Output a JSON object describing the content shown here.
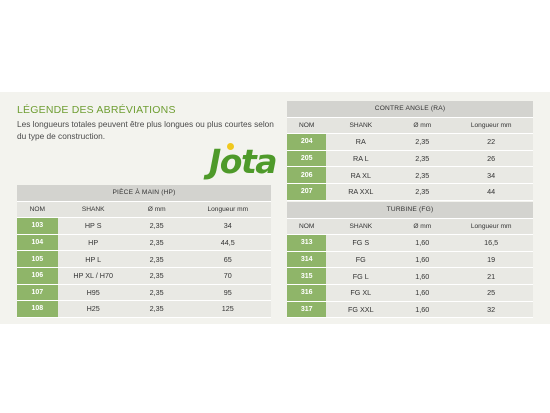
{
  "title": "LÉGENDE DES ABRÉVIATIONS",
  "description": "Les longueurs totales peuvent être plus longues ou plus courtes selon du type de construction.",
  "logo": "Jota",
  "colors": {
    "accent": "#6f9e33",
    "number_cell": "#8fb569",
    "panel": "#f3f3ee"
  },
  "tables": {
    "hp": {
      "caption": "PIÈCE À MAIN (HP)",
      "headers": [
        "NOM",
        "SHANK",
        "Ø mm",
        "Longueur mm"
      ],
      "rows": [
        [
          "103",
          "HP S",
          "2,35",
          "34"
        ],
        [
          "104",
          "HP",
          "2,35",
          "44,5"
        ],
        [
          "105",
          "HP L",
          "2,35",
          "65"
        ],
        [
          "106",
          "HP XL / H70",
          "2,35",
          "70"
        ],
        [
          "107",
          "H95",
          "2,35",
          "95"
        ],
        [
          "108",
          "H25",
          "2,35",
          "125"
        ]
      ]
    },
    "ca": {
      "caption": "CONTRE ANGLE (RA)",
      "headers": [
        "NOM",
        "SHANK",
        "Ø mm",
        "Longueur mm"
      ],
      "rows": [
        [
          "204",
          "RA",
          "2,35",
          "22"
        ],
        [
          "205",
          "RA L",
          "2,35",
          "26"
        ],
        [
          "206",
          "RA XL",
          "2,35",
          "34"
        ],
        [
          "207",
          "RA XXL",
          "2,35",
          "44"
        ]
      ]
    },
    "tb": {
      "caption": "TURBINE (FG)",
      "headers": [
        "NOM",
        "SHANK",
        "Ø mm",
        "Longueur mm"
      ],
      "rows": [
        [
          "313",
          "FG S",
          "1,60",
          "16,5"
        ],
        [
          "314",
          "FG",
          "1,60",
          "19"
        ],
        [
          "315",
          "FG L",
          "1,60",
          "21"
        ],
        [
          "316",
          "FG XL",
          "1,60",
          "25"
        ],
        [
          "317",
          "FG XXL",
          "1,60",
          "32"
        ]
      ]
    }
  }
}
